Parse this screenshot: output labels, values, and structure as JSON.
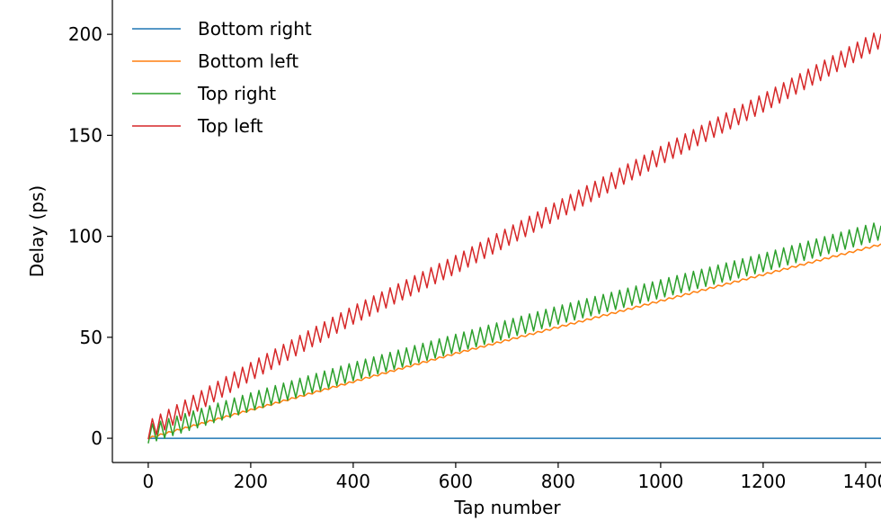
{
  "chart_data": {
    "type": "line",
    "title": "",
    "xlabel": "Tap number",
    "ylabel": "Delay (ps)",
    "xlim": [
      -70,
      1430
    ],
    "ylim": [
      -12,
      217
    ],
    "xticks": [
      0,
      200,
      400,
      600,
      800,
      1000,
      1200,
      1400
    ],
    "yticks": [
      0,
      50,
      100,
      150,
      200
    ],
    "legend": {
      "placement": "top-left",
      "frame": false
    },
    "grid": false,
    "series": [
      {
        "name": "Bottom right",
        "color": "#1f77b4",
        "x": [
          0,
          1430
        ],
        "y": [
          0,
          0
        ],
        "oscillation": {
          "amplitude": 0,
          "period": 16
        }
      },
      {
        "name": "Bottom left",
        "color": "#ff7f0e",
        "x": [
          0,
          200,
          400,
          600,
          800,
          1000,
          1200,
          1430
        ],
        "y": [
          0,
          14,
          28,
          42,
          55,
          68,
          81,
          96
        ],
        "oscillation": {
          "amplitude": 0.5,
          "period": 16
        }
      },
      {
        "name": "Top right",
        "color": "#2ca02c",
        "x": [
          0,
          200,
          400,
          600,
          800,
          1000,
          1200,
          1430
        ],
        "y": [
          2,
          18,
          33,
          47,
          61,
          74,
          87,
          103
        ],
        "oscillation": {
          "amplitude": 4.5,
          "period": 16
        }
      },
      {
        "name": "Top left",
        "color": "#d62728",
        "x": [
          0,
          200,
          400,
          600,
          800,
          1000,
          1200,
          1430
        ],
        "y": [
          4,
          33,
          61,
          86,
          113,
          140,
          166,
          198
        ],
        "oscillation": {
          "amplitude": 4.5,
          "period": 16
        }
      }
    ]
  }
}
